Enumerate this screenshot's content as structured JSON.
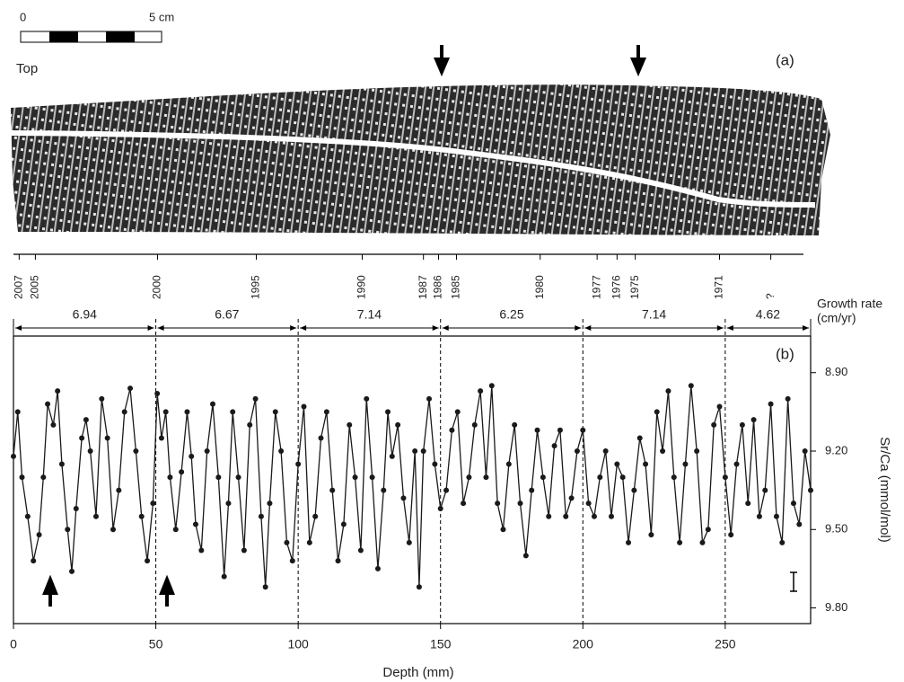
{
  "panel_a": {
    "scale_start": "0",
    "scale_end": "5 cm",
    "top_label": "Top",
    "label": "(a)",
    "year_marks": [
      {
        "label": "2007",
        "depth": 2
      },
      {
        "label": "2005",
        "depth": 7.7
      },
      {
        "label": "2000",
        "depth": 50.6
      },
      {
        "label": "1995",
        "depth": 85.3
      },
      {
        "label": "1990",
        "depth": 122.5
      },
      {
        "label": "1987",
        "depth": 144
      },
      {
        "label": "1986",
        "depth": 149.3
      },
      {
        "label": "1985",
        "depth": 155.6
      },
      {
        "label": "1980",
        "depth": 185
      },
      {
        "label": "1977",
        "depth": 205
      },
      {
        "label": "1976",
        "depth": 212
      },
      {
        "label": "1975",
        "depth": 218.4
      },
      {
        "label": "1971",
        "depth": 248
      },
      {
        "label": "?",
        "depth": 266
      }
    ]
  },
  "chart_data": {
    "type": "line",
    "panel_label": "(b)",
    "x_label": "Depth (mm)",
    "y_label": "Sr/Ca (mmol/mol)",
    "growth_rate_label": [
      "Growth rate",
      "(cm/yr)"
    ],
    "growth_segments": [
      {
        "start": 0,
        "end": 50,
        "rate": 6.94
      },
      {
        "start": 50,
        "end": 100,
        "rate": 6.67
      },
      {
        "start": 100,
        "end": 150,
        "rate": 7.14
      },
      {
        "start": 150,
        "end": 200,
        "rate": 6.25
      },
      {
        "start": 200,
        "end": 250,
        "rate": 7.14
      },
      {
        "start": 250,
        "end": 280,
        "rate": 4.62
      }
    ],
    "xlim": [
      0,
      280
    ],
    "xticks": [
      0,
      50,
      100,
      150,
      200,
      250
    ],
    "ylim": [
      8.76,
      9.86
    ],
    "y_inverted": true,
    "y_axis_side": "right",
    "yticks": [
      {
        "value": 8.9,
        "label": "8.90"
      },
      {
        "value": 9.2,
        "label": "9.20"
      },
      {
        "value": 9.5,
        "label": "9.50"
      },
      {
        "value": 9.8,
        "label": "9.80"
      }
    ],
    "color": "#1a1a1a",
    "x": [
      0,
      1.5,
      3,
      5,
      7,
      9,
      10.5,
      12,
      14,
      15.5,
      17,
      19,
      20.5,
      22,
      24,
      25.5,
      27,
      29,
      31,
      33,
      35,
      37,
      39,
      41,
      43,
      45,
      47,
      49,
      50.5,
      52,
      53.5,
      55,
      57,
      59,
      61,
      62.5,
      64,
      66,
      68,
      70,
      72,
      74,
      75.5,
      77,
      79,
      81,
      83,
      85,
      87,
      88.5,
      90,
      92,
      94,
      96,
      98,
      100,
      102,
      104,
      106,
      108,
      110,
      112,
      114,
      116,
      118,
      120,
      122,
      124,
      126,
      128,
      130,
      131.5,
      133,
      135,
      137,
      139,
      141,
      142.5,
      144,
      146,
      148,
      150,
      152,
      154,
      156,
      158,
      160,
      162,
      164,
      166,
      168,
      170,
      172,
      174,
      176,
      178,
      180,
      182,
      184,
      186,
      188,
      190,
      192,
      194,
      196,
      198,
      200,
      202,
      204,
      206,
      208,
      210,
      212,
      214,
      216,
      218,
      220,
      222,
      224,
      226,
      228,
      230,
      232,
      234,
      236,
      238,
      240,
      242,
      244,
      246,
      248,
      250,
      252,
      254,
      256,
      258,
      260,
      262,
      264,
      266,
      268,
      270,
      272,
      274,
      276,
      278,
      280
    ],
    "values": [
      9.22,
      9.05,
      9.3,
      9.45,
      9.62,
      9.52,
      9.3,
      9.02,
      9.1,
      8.97,
      9.25,
      9.5,
      9.66,
      9.42,
      9.15,
      9.08,
      9.2,
      9.45,
      9.0,
      9.15,
      9.5,
      9.35,
      9.05,
      8.96,
      9.2,
      9.45,
      9.62,
      9.4,
      8.98,
      9.15,
      9.05,
      9.3,
      9.5,
      9.28,
      9.05,
      9.22,
      9.48,
      9.58,
      9.2,
      9.02,
      9.3,
      9.68,
      9.4,
      9.05,
      9.3,
      9.58,
      9.1,
      9.0,
      9.45,
      9.72,
      9.4,
      9.05,
      9.2,
      9.55,
      9.62,
      9.25,
      9.03,
      9.55,
      9.45,
      9.15,
      9.05,
      9.35,
      9.62,
      9.48,
      9.1,
      9.3,
      9.58,
      9.0,
      9.3,
      9.65,
      9.35,
      9.05,
      9.22,
      9.1,
      9.38,
      9.55,
      9.2,
      9.72,
      9.2,
      9.0,
      9.25,
      9.42,
      9.35,
      9.12,
      9.05,
      9.4,
      9.3,
      9.1,
      8.97,
      9.3,
      8.95,
      9.4,
      9.5,
      9.25,
      9.1,
      9.4,
      9.6,
      9.35,
      9.12,
      9.3,
      9.45,
      9.18,
      9.12,
      9.45,
      9.38,
      9.2,
      9.12,
      9.4,
      9.45,
      9.3,
      9.2,
      9.45,
      9.25,
      9.3,
      9.55,
      9.35,
      9.15,
      9.25,
      9.52,
      9.05,
      9.2,
      8.97,
      9.3,
      9.55,
      9.25,
      8.95,
      9.2,
      9.55,
      9.5,
      9.1,
      9.03,
      9.3,
      9.52,
      9.25,
      9.1,
      9.4,
      9.08,
      9.45,
      9.35,
      9.02,
      9.45,
      9.55,
      9.0,
      9.4,
      9.48,
      9.2,
      9.35
    ]
  }
}
